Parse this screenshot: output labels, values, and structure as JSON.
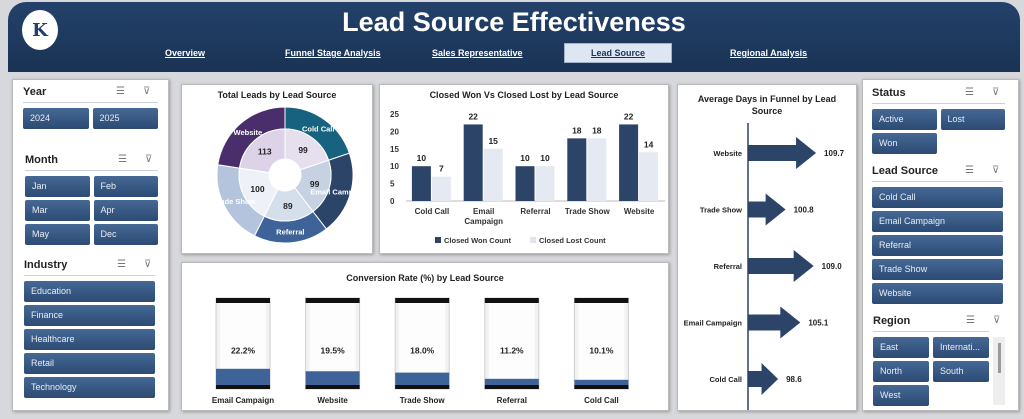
{
  "header": {
    "title": "Lead Source Effectiveness",
    "logo_text": "K",
    "nav": [
      "Overview",
      "Funnel Stage Analysis",
      "Sales Representative",
      "Lead Source",
      "Regional Analysis"
    ],
    "active_nav": "Lead Source"
  },
  "left_panel": {
    "year": {
      "title": "Year",
      "items": [
        "2024",
        "2025"
      ]
    },
    "month": {
      "title": "Month",
      "items": [
        "Jan",
        "Feb",
        "Mar",
        "Apr",
        "May",
        "Dec"
      ]
    },
    "industry": {
      "title": "Industry",
      "items": [
        "Education",
        "Finance",
        "Healthcare",
        "Retail",
        "Technology"
      ]
    }
  },
  "right_panel": {
    "status": {
      "title": "Status",
      "items": [
        "Active",
        "Lost",
        "Won"
      ]
    },
    "lead_source": {
      "title": "Lead Source",
      "items": [
        "Cold Call",
        "Email Campaign",
        "Referral",
        "Trade Show",
        "Website"
      ]
    },
    "region": {
      "title": "Region",
      "items": [
        "East",
        "Internati...",
        "North",
        "South",
        "West"
      ]
    }
  },
  "icons": {
    "multi_select": "multi-select-icon",
    "clear_filter": "clear-filter-icon"
  },
  "chart_data": [
    {
      "type": "pie",
      "title": "Total Leads by Lead Source",
      "categories": [
        "Cold Call",
        "Email Campaign",
        "Referral",
        "Trade Show",
        "Website"
      ],
      "values": [
        99,
        99,
        89,
        100,
        113
      ],
      "colors": [
        "#17627f",
        "#2c4468",
        "#3d6399",
        "#b3c4dc",
        "#4a2e6c"
      ]
    },
    {
      "type": "bar",
      "title": "Closed Won Vs Closed Lost by Lead Source",
      "categories": [
        "Cold Call",
        "Email Campaign",
        "Referral",
        "Trade Show",
        "Website"
      ],
      "series": [
        {
          "name": "Closed Won Count",
          "values": [
            10,
            22,
            10,
            18,
            22
          ],
          "color": "#2c4468"
        },
        {
          "name": "Closed Lost Count",
          "values": [
            7,
            15,
            10,
            18,
            14
          ],
          "color": "#e4e9f2"
        }
      ],
      "ylim": [
        0,
        25
      ],
      "yticks": [
        0,
        5,
        10,
        15,
        20,
        25
      ],
      "legend": "bottom"
    },
    {
      "type": "bar",
      "title": "Conversion Rate (%) by Lead Source",
      "categories": [
        "Email Campaign",
        "Website",
        "Trade Show",
        "Referral",
        "Cold Call"
      ],
      "values": [
        22.2,
        19.5,
        18.0,
        11.2,
        10.1
      ],
      "labels": [
        "22.2%",
        "19.5%",
        "18.0%",
        "11.2%",
        "10.1%"
      ],
      "color": "#3d6399"
    },
    {
      "type": "bar",
      "title": "Average Days in Funnel by Lead Source",
      "categories": [
        "Website",
        "Trade Show",
        "Referral",
        "Email Campaign",
        "Cold Call"
      ],
      "values": [
        109.7,
        100.8,
        109.0,
        105.1,
        98.6
      ],
      "labels": [
        "109.7",
        "100.8",
        "109.0",
        "105.1",
        "98.6"
      ],
      "color": "#2c4468"
    }
  ]
}
